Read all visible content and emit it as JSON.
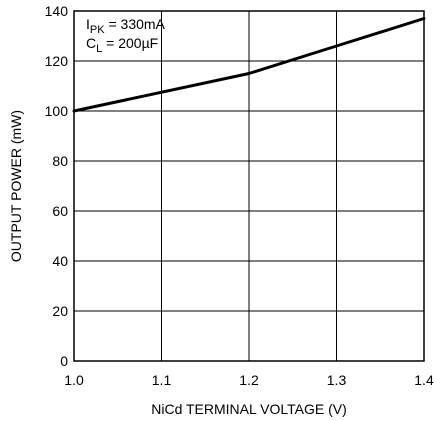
{
  "chart_data": {
    "type": "line",
    "xlabel": "NiCd TERMINAL VOLTAGE (V)",
    "ylabel": "OUTPUT POWER (mW)",
    "xlim": [
      1.0,
      1.4
    ],
    "ylim": [
      0,
      140
    ],
    "x_ticks": [
      1.0,
      1.1,
      1.2,
      1.3,
      1.4
    ],
    "x_tick_labels": [
      "1.0",
      "1.1",
      "1.2",
      "1.3",
      "1.4"
    ],
    "y_ticks": [
      0,
      20,
      40,
      60,
      80,
      100,
      120,
      140
    ],
    "y_tick_labels": [
      "0",
      "20",
      "40",
      "60",
      "80",
      "100",
      "120",
      "140"
    ],
    "grid": true,
    "series": [
      {
        "x": [
          1.0,
          1.2,
          1.3,
          1.4
        ],
        "y": [
          100,
          115,
          126,
          137
        ]
      }
    ],
    "annotations": {
      "ipk": {
        "symbol": "I",
        "sub": "PK",
        "rest": " = 330mA"
      },
      "cl": {
        "symbol": "C",
        "sub": "L",
        "rest": " = 200µF"
      }
    }
  }
}
